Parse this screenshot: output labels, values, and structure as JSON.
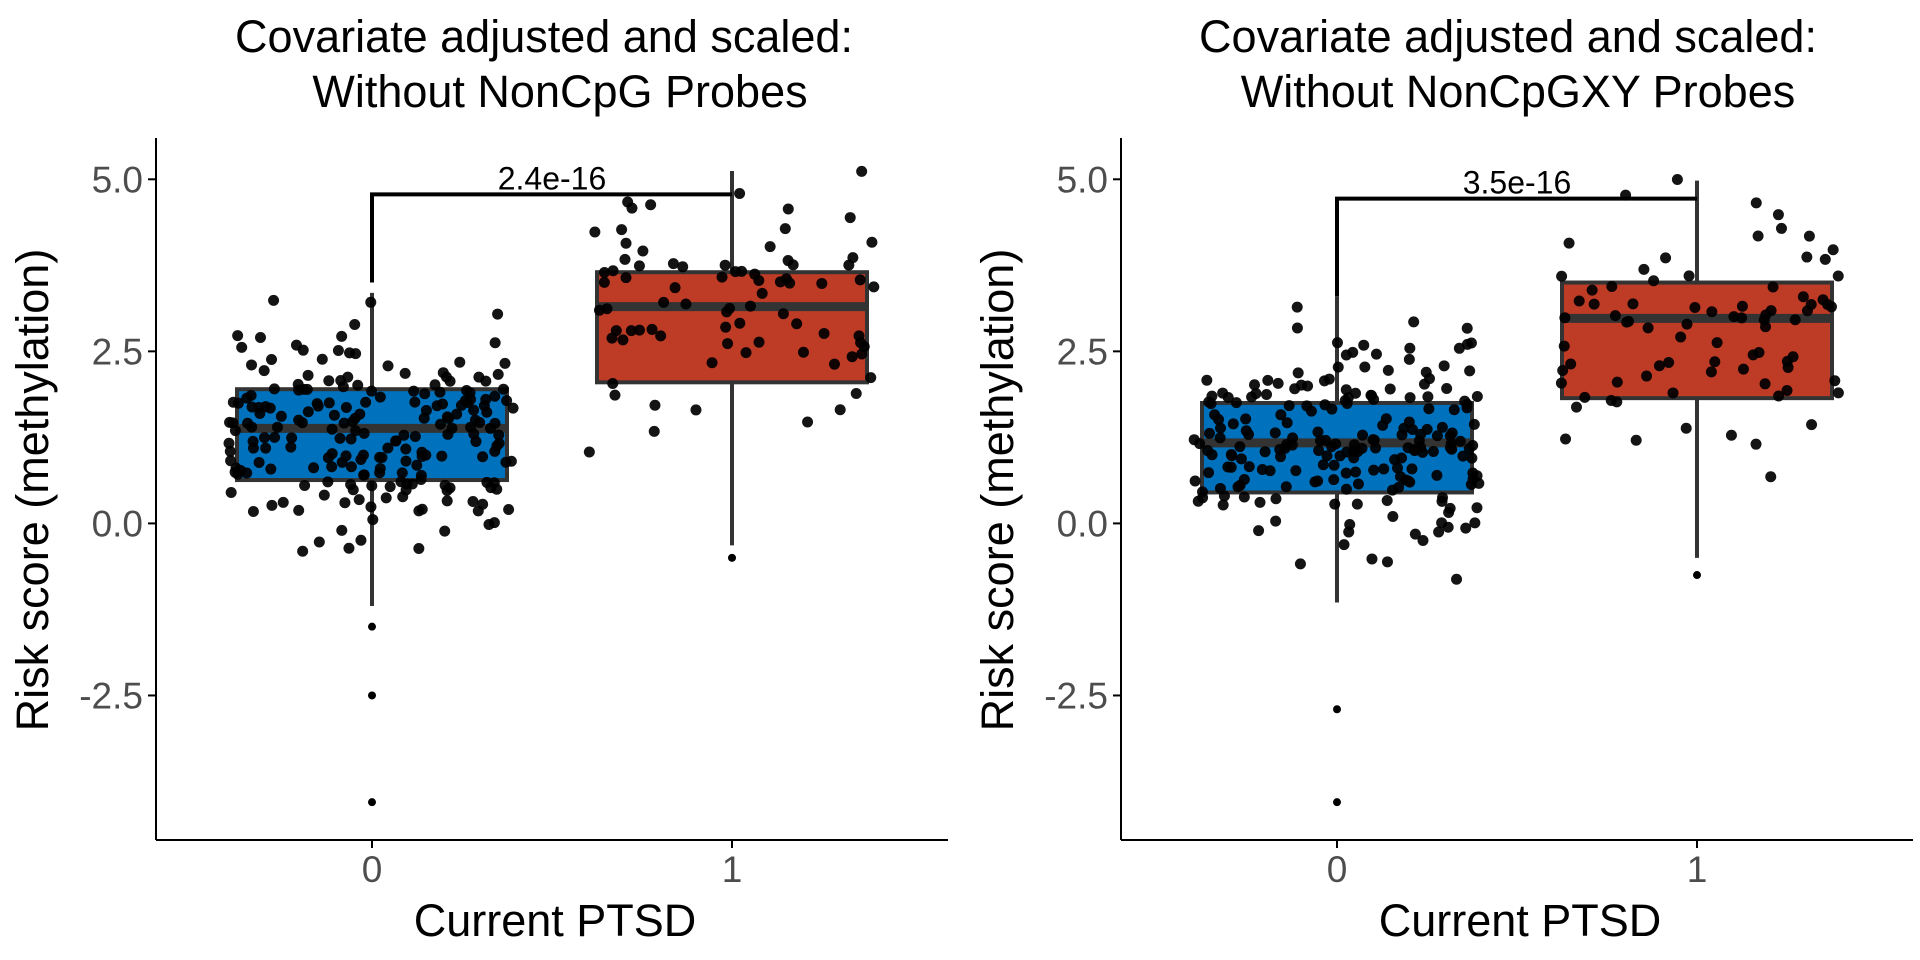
{
  "colors": {
    "group0": "#0072BD",
    "group1": "#BE3C26",
    "box_stroke": "#333333",
    "point": "#000000",
    "axis": "#000000",
    "tick_text": "#4D4D4D"
  },
  "chart_data": [
    {
      "type": "box",
      "title_line1": "Covariate adjusted and scaled:",
      "title_line2": "Without NonCpG Probes",
      "xlabel": "Current PTSD",
      "ylabel": "Risk score (methylation)",
      "categories": [
        "0",
        "1"
      ],
      "ylim": [
        -4.6,
        5.6
      ],
      "yticks": [
        5.0,
        2.5,
        0.0,
        -2.5
      ],
      "ytick_labels": [
        "5.0",
        "2.5",
        "0.0",
        "-2.5"
      ],
      "boxes": [
        {
          "category": "0",
          "q1": 0.63,
          "median": 1.38,
          "q3": 1.95,
          "whisker_low": -1.2,
          "whisker_high": 3.35
        },
        {
          "category": "1",
          "q1": 2.05,
          "median": 3.15,
          "q3": 3.65,
          "whisker_low": -0.32,
          "whisker_high": 5.12
        }
      ],
      "comparison": {
        "label": "2.4e-16",
        "y": 4.78,
        "left_end": 3.5,
        "right_end": 4.78
      },
      "outliers": [
        {
          "category": "0",
          "values": [
            -1.5,
            -2.5,
            -4.05
          ]
        },
        {
          "category": "1",
          "values": [
            -0.5
          ]
        }
      ]
    },
    {
      "type": "box",
      "title_line1": "Covariate adjusted and scaled:",
      "title_line2": "Without NonCpGXY Probes",
      "xlabel": "Current PTSD",
      "ylabel": "Risk score (methylation)",
      "categories": [
        "0",
        "1"
      ],
      "ylim": [
        -4.6,
        5.6
      ],
      "yticks": [
        5.0,
        2.5,
        0.0,
        -2.5
      ],
      "ytick_labels": [
        "5.0",
        "2.5",
        "0.0",
        "-2.5"
      ],
      "boxes": [
        {
          "category": "0",
          "q1": 0.45,
          "median": 1.17,
          "q3": 1.75,
          "whisker_low": -1.15,
          "whisker_high": 3.3
        },
        {
          "category": "1",
          "q1": 1.82,
          "median": 2.98,
          "q3": 3.5,
          "whisker_low": -0.5,
          "whisker_high": 4.98
        }
      ],
      "comparison": {
        "label": "3.5e-16",
        "y": 4.72,
        "left_end": 3.3,
        "right_end": 4.72
      },
      "outliers": [
        {
          "category": "0",
          "values": [
            -2.7,
            -4.05
          ]
        },
        {
          "category": "1",
          "values": [
            -0.75
          ]
        }
      ]
    }
  ]
}
